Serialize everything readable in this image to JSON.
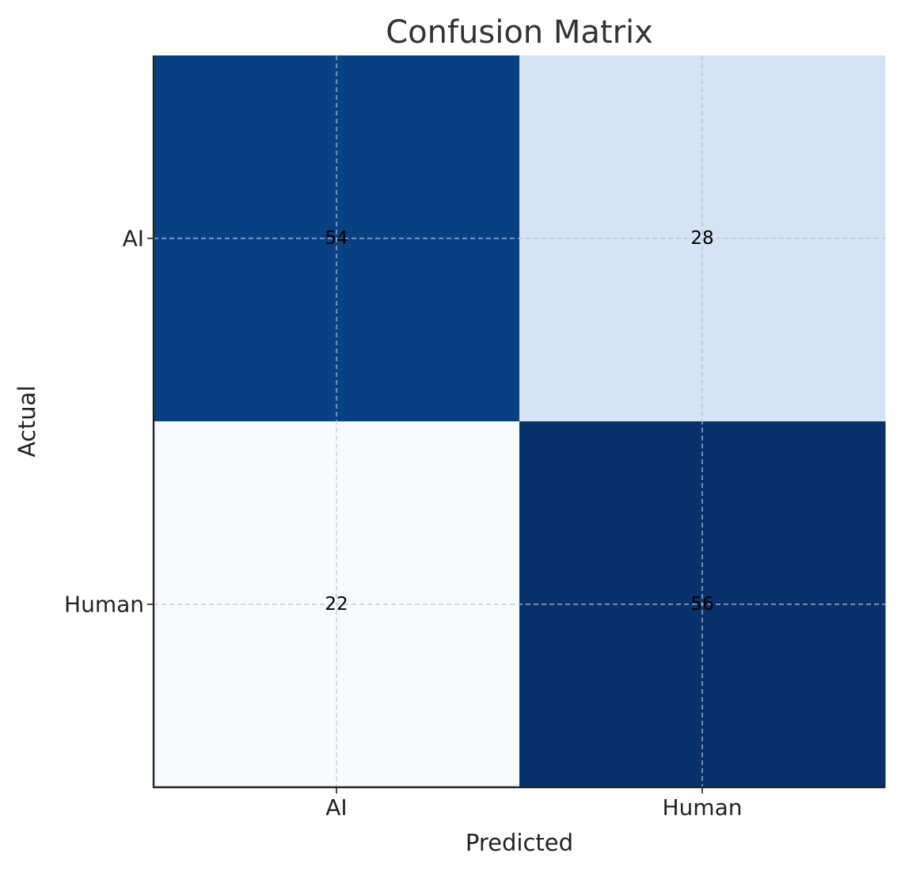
{
  "chart_data": {
    "type": "heatmap",
    "title": "Confusion Matrix",
    "xlabel": "Predicted",
    "ylabel": "Actual",
    "x_categories": [
      "AI",
      "Human"
    ],
    "y_categories": [
      "AI",
      "Human"
    ],
    "values": [
      [
        54,
        28
      ],
      [
        22,
        56
      ]
    ],
    "colormap": "Blues",
    "grid": true,
    "colors": {
      "low": "#f7fbff",
      "mid": "#d3e4f3",
      "high": "#08306b",
      "grid": "#b8c4cc"
    }
  }
}
